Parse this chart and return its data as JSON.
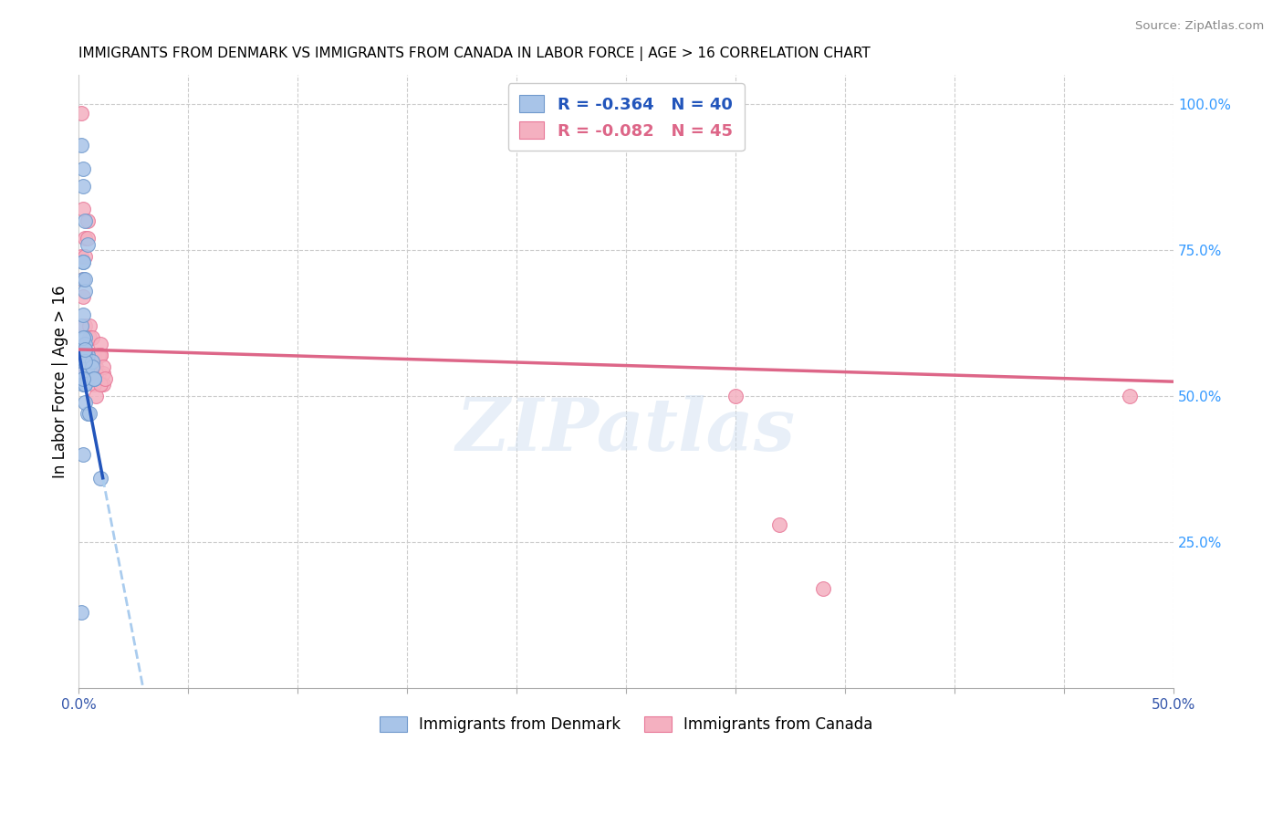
{
  "title": "IMMIGRANTS FROM DENMARK VS IMMIGRANTS FROM CANADA IN LABOR FORCE | AGE > 16 CORRELATION CHART",
  "source": "Source: ZipAtlas.com",
  "ylabel": "In Labor Force | Age > 16",
  "legend_blue_r": "-0.364",
  "legend_blue_n": "40",
  "legend_pink_r": "-0.082",
  "legend_pink_n": "45",
  "xlim": [
    0.0,
    0.5
  ],
  "ylim": [
    0.0,
    1.05
  ],
  "denmark_color": "#a8c4e8",
  "canada_color": "#f4b0c0",
  "denmark_edge": "#7099cc",
  "canada_edge": "#e87898",
  "denmark_line_color": "#2255bb",
  "canada_line_color": "#dd6688",
  "dashed_line_color": "#aaccee",
  "watermark": "ZIPatlas",
  "denmark_x": [
    0.001,
    0.004,
    0.003,
    0.002,
    0.002,
    0.003,
    0.002,
    0.003,
    0.003,
    0.002,
    0.002,
    0.003,
    0.002,
    0.003,
    0.004,
    0.002,
    0.004,
    0.003,
    0.005,
    0.003,
    0.004,
    0.003,
    0.004,
    0.003,
    0.006,
    0.006,
    0.007,
    0.007,
    0.01,
    0.002,
    0.001,
    0.002,
    0.003,
    0.002,
    0.002,
    0.003,
    0.002,
    0.002,
    0.001,
    0.003
  ],
  "denmark_y": [
    0.62,
    0.76,
    0.8,
    0.73,
    0.7,
    0.68,
    0.64,
    0.6,
    0.57,
    0.57,
    0.54,
    0.52,
    0.56,
    0.59,
    0.56,
    0.52,
    0.47,
    0.49,
    0.47,
    0.52,
    0.55,
    0.56,
    0.57,
    0.57,
    0.56,
    0.55,
    0.53,
    0.53,
    0.36,
    0.6,
    0.93,
    0.73,
    0.7,
    0.86,
    0.89,
    0.56,
    0.53,
    0.4,
    0.13,
    0.58
  ],
  "canada_x": [
    0.001,
    0.002,
    0.001,
    0.002,
    0.003,
    0.003,
    0.002,
    0.003,
    0.003,
    0.004,
    0.004,
    0.005,
    0.005,
    0.006,
    0.007,
    0.008,
    0.009,
    0.009,
    0.01,
    0.01,
    0.011,
    0.011,
    0.002,
    0.003,
    0.003,
    0.003,
    0.004,
    0.004,
    0.005,
    0.005,
    0.006,
    0.007,
    0.007,
    0.008,
    0.008,
    0.009,
    0.01,
    0.01,
    0.011,
    0.012,
    0.3,
    0.32,
    0.34,
    0.48,
    0.001
  ],
  "canada_y": [
    0.985,
    0.82,
    0.74,
    0.7,
    0.77,
    0.74,
    0.67,
    0.62,
    0.57,
    0.8,
    0.77,
    0.62,
    0.6,
    0.6,
    0.57,
    0.55,
    0.57,
    0.54,
    0.59,
    0.57,
    0.52,
    0.54,
    0.56,
    0.57,
    0.58,
    0.54,
    0.55,
    0.57,
    0.55,
    0.54,
    0.57,
    0.56,
    0.52,
    0.54,
    0.5,
    0.57,
    0.52,
    0.57,
    0.55,
    0.53,
    0.5,
    0.28,
    0.17,
    0.5,
    0.57
  ],
  "dk_line_x0": 0.0,
  "dk_line_y0": 0.575,
  "dk_line_x1": 0.011,
  "dk_line_y1": 0.36,
  "ca_line_x0": 0.0,
  "ca_line_y0": 0.58,
  "ca_line_x1": 0.5,
  "ca_line_y1": 0.525
}
